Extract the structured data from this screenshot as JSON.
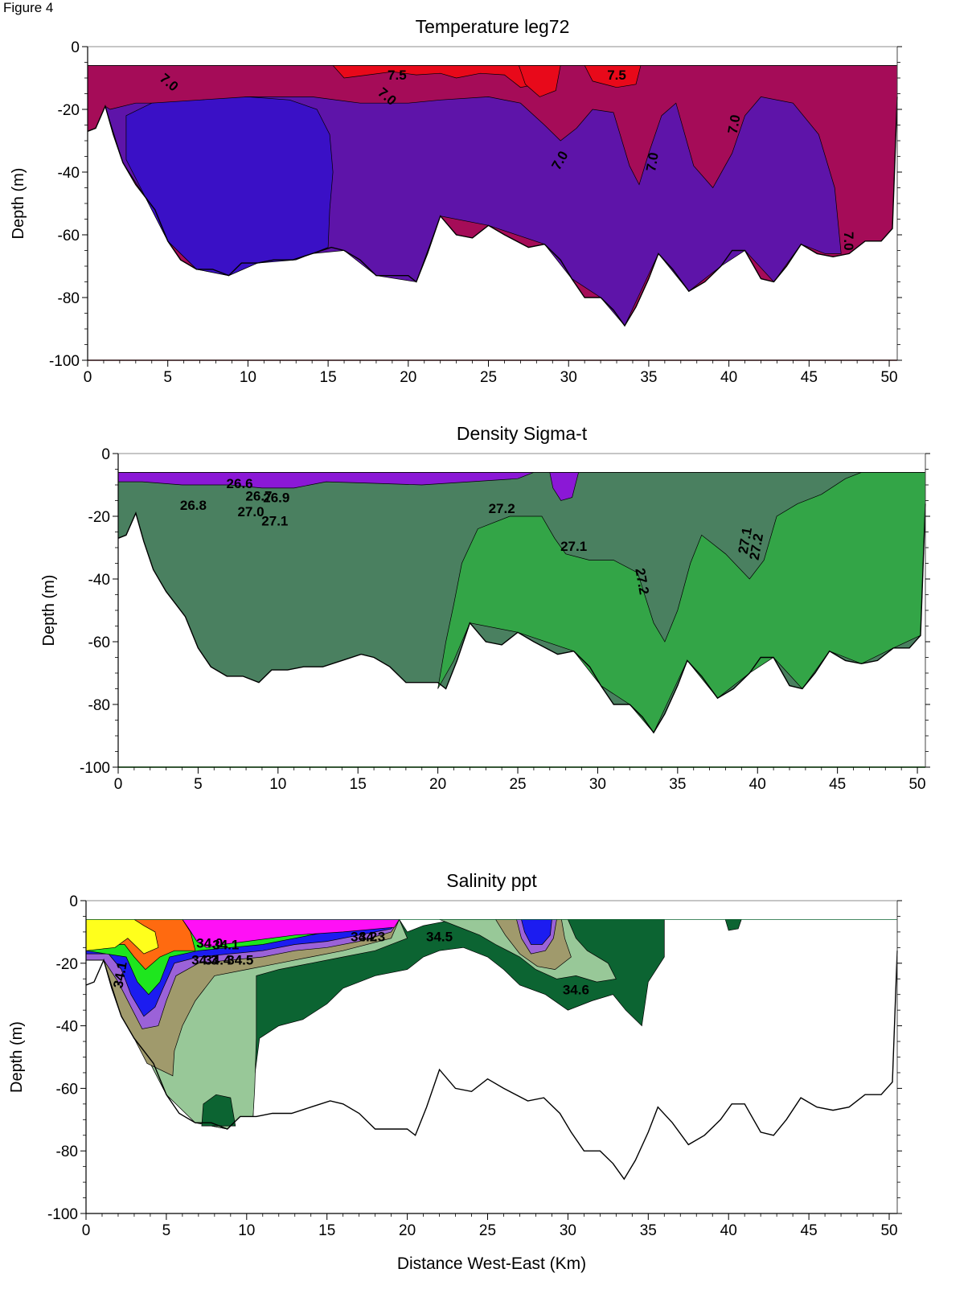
{
  "figure_label": "Figure 4",
  "colors": {
    "temp_cold": "#3a10c6",
    "temp_mid": "#5e14a9",
    "temp_warm": "#a50c58",
    "temp_hot": "#e8091a",
    "dens_light": "#8b18d6",
    "dens_mid": "#4a8060",
    "dens_heavy": "#33a547",
    "sal_fresh": "#ffff1c",
    "sal_orange": "#ff6a10",
    "sal_magenta": "#ff10f6",
    "sal_blue": "#1c1cf0",
    "sal_violet": "#9b62d8",
    "sal_khaki": "#a09a6c",
    "sal_lightgreen": "#98c898",
    "sal_dark": "#0c6432"
  },
  "chart_data": [
    {
      "type": "contour",
      "title": "Temperature leg72",
      "xlabel": "",
      "ylabel": "Depth (m)",
      "xlim": [
        0,
        50.5
      ],
      "ylim": [
        -100,
        0
      ],
      "xticks": [
        0,
        5,
        10,
        15,
        20,
        25,
        30,
        35,
        40,
        45,
        50
      ],
      "yticks": [
        0,
        -20,
        -40,
        -60,
        -80,
        -100
      ],
      "contour_labels": [
        {
          "text": "7.0",
          "x": 4.9,
          "y": -12.5,
          "angle": 40
        },
        {
          "text": "7.5",
          "x": 19.3,
          "y": -10.5,
          "angle": 0
        },
        {
          "text": "7.0",
          "x": 18.5,
          "y": -17,
          "angle": 40
        },
        {
          "text": "7.5",
          "x": 33.0,
          "y": -10.5,
          "angle": 0
        },
        {
          "text": "7.0",
          "x": 29.7,
          "y": -37,
          "angle": -60
        },
        {
          "text": "7.0",
          "x": 35.5,
          "y": -37,
          "angle": -80
        },
        {
          "text": "7.0",
          "x": 40.6,
          "y": -25,
          "angle": -80
        },
        {
          "text": "7.0",
          "x": 47.2,
          "y": -62,
          "angle": 90
        }
      ]
    },
    {
      "type": "contour",
      "title": "Density Sigma-t",
      "xlabel": "",
      "ylabel": "Depth (m)",
      "xlim": [
        0,
        50.5
      ],
      "ylim": [
        -100,
        0
      ],
      "xticks": [
        0,
        5,
        10,
        15,
        20,
        25,
        30,
        35,
        40,
        45,
        50
      ],
      "yticks": [
        0,
        -20,
        -40,
        -60,
        -80,
        -100
      ],
      "contour_labels": [
        {
          "text": "26.6",
          "x": 7.6,
          "y": -11,
          "angle": 0
        },
        {
          "text": "26.7",
          "x": 8.8,
          "y": -15,
          "angle": 0
        },
        {
          "text": "26.8",
          "x": 4.7,
          "y": -18,
          "angle": 0
        },
        {
          "text": "26.9",
          "x": 9.9,
          "y": -15.5,
          "angle": 0
        },
        {
          "text": "27.0",
          "x": 8.3,
          "y": -20,
          "angle": 0
        },
        {
          "text": "27.1",
          "x": 9.8,
          "y": -23,
          "angle": 0
        },
        {
          "text": "27.2",
          "x": 24.0,
          "y": -19,
          "angle": 0
        },
        {
          "text": "27.1",
          "x": 28.5,
          "y": -31,
          "angle": 0
        },
        {
          "text": "27.2",
          "x": 32.5,
          "y": -41,
          "angle": 80
        },
        {
          "text": "27.1",
          "x": 39.5,
          "y": -28,
          "angle": -80
        },
        {
          "text": "27.2",
          "x": 40.2,
          "y": -30,
          "angle": -80
        }
      ]
    },
    {
      "type": "contour",
      "title": "Salinity ppt",
      "xlabel": "Distance West-East (Km)",
      "ylabel": "Depth (m)",
      "xlim": [
        0,
        50.5
      ],
      "ylim": [
        -100,
        0
      ],
      "xticks": [
        0,
        5,
        10,
        15,
        20,
        25,
        30,
        35,
        40,
        45,
        50
      ],
      "yticks": [
        0,
        -20,
        -40,
        -60,
        -80,
        -100
      ],
      "contour_labels": [
        {
          "text": "34.0",
          "x": 7.7,
          "y": -15,
          "angle": 0
        },
        {
          "text": "34.1",
          "x": 8.7,
          "y": -15.5,
          "angle": 0
        },
        {
          "text": "34.3",
          "x": 7.4,
          "y": -20.5,
          "angle": 0
        },
        {
          "text": "34.4",
          "x": 8.2,
          "y": -20.5,
          "angle": 0
        },
        {
          "text": "34.5",
          "x": 9.6,
          "y": -20.5,
          "angle": 0
        },
        {
          "text": "34.2",
          "x": 17.3,
          "y": -13,
          "angle": 0
        },
        {
          "text": "34.3",
          "x": 17.8,
          "y": -13,
          "angle": 0
        },
        {
          "text": "34.5",
          "x": 22.0,
          "y": -13,
          "angle": 0
        },
        {
          "text": "34.6",
          "x": 30.5,
          "y": -30,
          "angle": 0
        },
        {
          "text": "34.1",
          "x": 2.4,
          "y": -24,
          "angle": -80
        }
      ]
    }
  ]
}
